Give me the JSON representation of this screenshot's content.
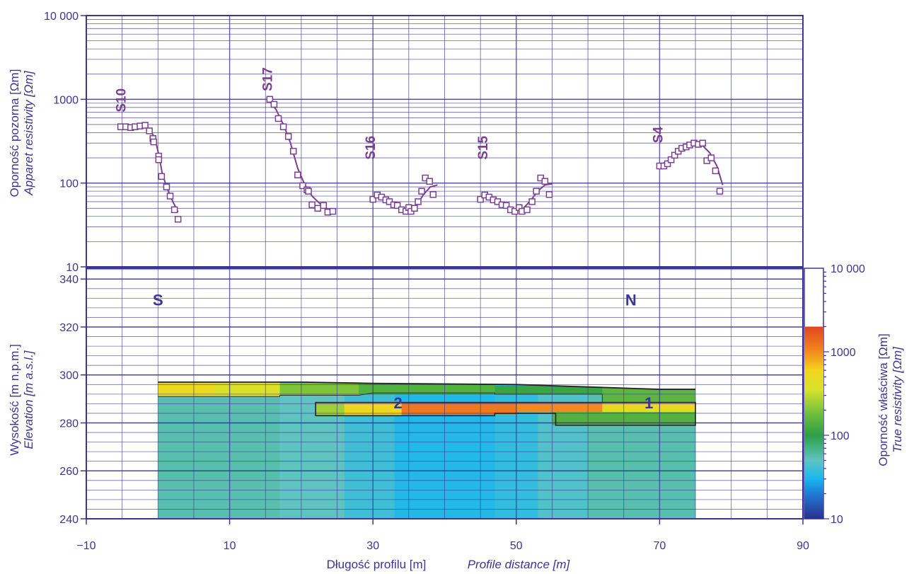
{
  "colors": {
    "axis": "#3b3593",
    "curve": "#7a3f92",
    "grid": "#3b3593",
    "label_bold": "#3a3596"
  },
  "chart_data": [
    {
      "type": "scatter",
      "id": "apparent-resistivity",
      "ylabel_pl": "Oporność pozorna [Ωm]",
      "ylabel_en": "Apparet resistivity [Ωm]",
      "yscale": "log",
      "ylim": [
        10,
        10000
      ],
      "yticks": [
        {
          "v": 10,
          "t": "10"
        },
        {
          "v": 100,
          "t": "100"
        },
        {
          "v": 1000,
          "t": "1000"
        },
        {
          "v": 10000,
          "t": "10 000"
        }
      ],
      "xlim": [
        -10,
        90
      ],
      "grid": true,
      "soundings": [
        {
          "name": "S10",
          "label_x": -5.2,
          "label_y": 700,
          "points": [
            [
              -5.2,
              470
            ],
            [
              -4.5,
              470
            ],
            [
              -3.8,
              460
            ],
            [
              -3.2,
              470
            ],
            [
              -2.5,
              480
            ],
            [
              -1.8,
              490
            ],
            [
              -1.2,
              420
            ],
            [
              -0.7,
              340
            ],
            [
              -0.6,
              310
            ],
            [
              0.1,
              210
            ],
            [
              0.1,
              190
            ],
            [
              0.5,
              120
            ],
            [
              1.2,
              90
            ],
            [
              1.7,
              70
            ],
            [
              2.3,
              48
            ],
            [
              2.8,
              37
            ]
          ],
          "curve": [
            [
              -5,
              470
            ],
            [
              -3,
              470
            ],
            [
              -1.8,
              470
            ],
            [
              -1.0,
              420
            ],
            [
              -0.4,
              340
            ],
            [
              0.1,
              220
            ],
            [
              0.6,
              130
            ],
            [
              1.2,
              90
            ],
            [
              2.0,
              62
            ],
            [
              2.8,
              45
            ]
          ]
        },
        {
          "name": "S17",
          "label_x": 15.2,
          "label_y": 1250,
          "points": [
            [
              15.6,
              1000
            ],
            [
              16.2,
              870
            ],
            [
              16.8,
              590
            ],
            [
              17.5,
              470
            ],
            [
              18.2,
              360
            ],
            [
              18.9,
              240
            ],
            [
              19.5,
              125
            ],
            [
              20.2,
              93
            ],
            [
              20.8,
              83
            ],
            [
              21.0,
              80
            ],
            [
              21.5,
              55
            ],
            [
              22.3,
              50
            ],
            [
              23.1,
              54
            ],
            [
              23.7,
              45
            ],
            [
              24.4,
              46
            ]
          ],
          "curve": [
            [
              15.6,
              950
            ],
            [
              16.5,
              750
            ],
            [
              17.5,
              500
            ],
            [
              18.5,
              300
            ],
            [
              19.5,
              150
            ],
            [
              20.5,
              95
            ],
            [
              21.5,
              70
            ],
            [
              22.5,
              58
            ],
            [
              23.5,
              50
            ],
            [
              24.5,
              47
            ]
          ]
        },
        {
          "name": "S16",
          "label_x": 29.6,
          "label_y": 190,
          "points": [
            [
              30.0,
              64
            ],
            [
              30.6,
              72
            ],
            [
              31.2,
              68
            ],
            [
              31.8,
              63
            ],
            [
              32.3,
              60
            ],
            [
              32.9,
              55
            ],
            [
              33.4,
              54
            ],
            [
              34.0,
              48
            ],
            [
              34.6,
              46
            ],
            [
              35.0,
              51
            ],
            [
              35.3,
              46
            ],
            [
              35.8,
              50
            ],
            [
              36.3,
              60
            ],
            [
              36.8,
              80
            ],
            [
              37.3,
              115
            ],
            [
              37.9,
              105
            ],
            [
              38.4,
              73
            ]
          ],
          "curve": [
            [
              30,
              68
            ],
            [
              31,
              68
            ],
            [
              32,
              62
            ],
            [
              33,
              55
            ],
            [
              34,
              49
            ],
            [
              35,
              47
            ],
            [
              36,
              52
            ],
            [
              37,
              72
            ],
            [
              38,
              90
            ],
            [
              39,
              95
            ]
          ]
        },
        {
          "name": "S15",
          "label_x": 45.3,
          "label_y": 190,
          "points": [
            [
              45.0,
              64
            ],
            [
              45.6,
              72
            ],
            [
              46.2,
              68
            ],
            [
              46.8,
              63
            ],
            [
              47.4,
              60
            ],
            [
              48.0,
              55
            ],
            [
              48.6,
              54
            ],
            [
              49.2,
              48
            ],
            [
              49.8,
              46
            ],
            [
              50.4,
              51
            ],
            [
              50.8,
              46
            ],
            [
              51.5,
              48
            ],
            [
              52.2,
              60
            ],
            [
              52.8,
              80
            ],
            [
              53.4,
              115
            ],
            [
              54.0,
              105
            ],
            [
              54.6,
              73
            ]
          ],
          "curve": [
            [
              45,
              68
            ],
            [
              46,
              68
            ],
            [
              47,
              62
            ],
            [
              48,
              55
            ],
            [
              49,
              49
            ],
            [
              50,
              47
            ],
            [
              51,
              50
            ],
            [
              52,
              62
            ],
            [
              53,
              80
            ],
            [
              54,
              95
            ],
            [
              55,
              98
            ]
          ]
        },
        {
          "name": "S4",
          "label_x": 69.7,
          "label_y": 300,
          "points": [
            [
              70.0,
              160
            ],
            [
              70.6,
              160
            ],
            [
              71.1,
              170
            ],
            [
              71.6,
              190
            ],
            [
              72.1,
              215
            ],
            [
              72.6,
              240
            ],
            [
              73.1,
              260
            ],
            [
              73.7,
              270
            ],
            [
              74.2,
              285
            ],
            [
              74.8,
              300
            ],
            [
              75.4,
              290
            ],
            [
              76.0,
              300
            ],
            [
              76.6,
              185
            ],
            [
              77.2,
              200
            ],
            [
              77.8,
              140
            ],
            [
              78.4,
              80
            ]
          ],
          "curve": [
            [
              70,
              165
            ],
            [
              71,
              180
            ],
            [
              72,
              210
            ],
            [
              73,
              245
            ],
            [
              74,
              275
            ],
            [
              75,
              290
            ],
            [
              76,
              280
            ],
            [
              77,
              230
            ],
            [
              78,
              160
            ],
            [
              78.8,
              95
            ]
          ]
        }
      ]
    },
    {
      "type": "heatmap",
      "id": "resistivity-section",
      "ylabel_pl": "Wysokość [m n.p.m.]",
      "ylabel_en": "Elevation [m a.s.l.]",
      "xlabel_pl": "Długość profilu [m]",
      "xlabel_en": "Profile distance [m]",
      "xlim": [
        -10,
        90
      ],
      "xticks": [
        -10,
        10,
        30,
        50,
        70,
        90
      ],
      "ylim": [
        240,
        344
      ],
      "yticks": [
        240,
        260,
        280,
        300,
        320,
        340
      ],
      "grid": true,
      "annotations": [
        {
          "text": "S",
          "x": 0,
          "y": 329
        },
        {
          "text": "N",
          "x": 66,
          "y": 329
        },
        {
          "text": "2",
          "x": 33.5,
          "y": 286
        },
        {
          "text": "1",
          "x": 68.5,
          "y": 286
        }
      ],
      "model_extent": {
        "x0": 0,
        "x1": 75,
        "y_bottom": 240
      },
      "surface": [
        [
          0,
          297
        ],
        [
          10,
          297
        ],
        [
          20,
          297
        ],
        [
          30,
          296.5
        ],
        [
          50,
          296
        ],
        [
          60,
          295
        ],
        [
          70,
          294
        ],
        [
          75,
          294
        ]
      ],
      "columns": [
        {
          "x0": 0,
          "x1": 17,
          "value": 55
        },
        {
          "x0": 17,
          "x1": 26,
          "value": 50
        },
        {
          "x0": 26,
          "x1": 33,
          "value": 40
        },
        {
          "x0": 33,
          "x1": 47,
          "value": 32
        },
        {
          "x0": 47,
          "x1": 53,
          "value": 36
        },
        {
          "x0": 53,
          "x1": 60,
          "value": 45
        },
        {
          "x0": 60,
          "x1": 75,
          "value": 55
        }
      ],
      "layers": [
        {
          "x0": 0,
          "x1": 8,
          "top": 297,
          "bottom": 291,
          "value": 500
        },
        {
          "x0": 8,
          "x1": 17,
          "top": 297,
          "bottom": 291,
          "value": 380
        },
        {
          "x0": 17,
          "x1": 28,
          "top": 296.5,
          "bottom": 291.5,
          "value": 200
        },
        {
          "x0": 28,
          "x1": 47,
          "top": 296.5,
          "bottom": 292,
          "value": 140
        },
        {
          "x0": 47,
          "x1": 62,
          "top": 295.5,
          "bottom": 292,
          "value": 110
        },
        {
          "x0": 62,
          "x1": 75,
          "top": 294.5,
          "bottom": 288.5,
          "value": 150
        },
        {
          "x0": 22,
          "x1": 26,
          "top": 288.5,
          "bottom": 283,
          "value": 250
        },
        {
          "x0": 26,
          "x1": 34,
          "top": 288.5,
          "bottom": 283,
          "value": 550
        },
        {
          "x0": 34,
          "x1": 50,
          "top": 288.5,
          "bottom": 283.5,
          "value": 1200
        },
        {
          "x0": 50,
          "x1": 62,
          "top": 288.5,
          "bottom": 284.5,
          "value": 1000
        },
        {
          "x0": 62,
          "x1": 75,
          "top": 288.5,
          "bottom": 284.5,
          "value": 500
        },
        {
          "x0": 55,
          "x1": 75,
          "top": 284.5,
          "bottom": 279,
          "value": 140
        }
      ],
      "outline": [
        [
          22,
          288.5
        ],
        [
          75,
          288.5
        ],
        [
          75,
          279
        ],
        [
          55.5,
          279
        ],
        [
          55.5,
          284
        ],
        [
          47,
          284
        ],
        [
          47,
          283
        ],
        [
          22,
          283
        ]
      ]
    },
    {
      "type": "colorbar",
      "id": "true-resistivity-scale",
      "label_pl": "Oporność właściwa [Ωm]",
      "label_en": "True resistivity [Ωm]",
      "scale": "log",
      "range": [
        10,
        10000
      ],
      "ticks": [
        {
          "v": 10,
          "t": "10"
        },
        {
          "v": 100,
          "t": "100"
        },
        {
          "v": 1000,
          "t": "1000"
        },
        {
          "v": 10000,
          "t": "10 000"
        }
      ],
      "colored_max": 2000,
      "stops": [
        {
          "v": 10,
          "color": "#2b2f8e"
        },
        {
          "v": 20,
          "color": "#1f7bd4"
        },
        {
          "v": 30,
          "color": "#19b7ef"
        },
        {
          "v": 50,
          "color": "#5fc4c0"
        },
        {
          "v": 100,
          "color": "#2e9e47"
        },
        {
          "v": 180,
          "color": "#6fbf3c"
        },
        {
          "v": 350,
          "color": "#d7e22c"
        },
        {
          "v": 600,
          "color": "#f3d51c"
        },
        {
          "v": 1000,
          "color": "#f28a1d"
        },
        {
          "v": 2000,
          "color": "#e0461f"
        }
      ]
    }
  ]
}
